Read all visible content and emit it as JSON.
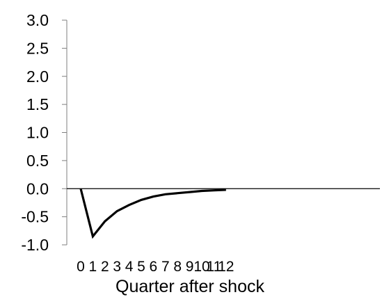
{
  "chart_data": {
    "type": "line",
    "title": "",
    "xlabel": "Quarter after shock",
    "ylabel": "",
    "x": [
      0,
      1,
      2,
      3,
      4,
      5,
      6,
      7,
      8,
      9,
      10,
      11,
      12
    ],
    "x_tick_labels": [
      "0",
      "1",
      "2",
      "3",
      "4",
      "5",
      "6",
      "7",
      "8",
      "9",
      "10",
      "11",
      "12"
    ],
    "y_tick_labels": [
      "-1.0",
      "-0.5",
      "0.0",
      "0.5",
      "1.0",
      "1.5",
      "2.0",
      "2.5",
      "3.0"
    ],
    "y_ticks": [
      -1.0,
      -0.5,
      0.0,
      0.5,
      1.0,
      1.5,
      2.0,
      2.5,
      3.0
    ],
    "ylim": [
      -1.0,
      3.0
    ],
    "xlim": [
      0,
      12
    ],
    "series": [
      {
        "values": [
          0.0,
          -0.85,
          -0.58,
          -0.4,
          -0.29,
          -0.2,
          -0.14,
          -0.1,
          -0.08,
          -0.06,
          -0.04,
          -0.03,
          -0.02
        ]
      }
    ],
    "zero_line": true,
    "grid": false,
    "legend": "none",
    "line_color": "#000000"
  }
}
